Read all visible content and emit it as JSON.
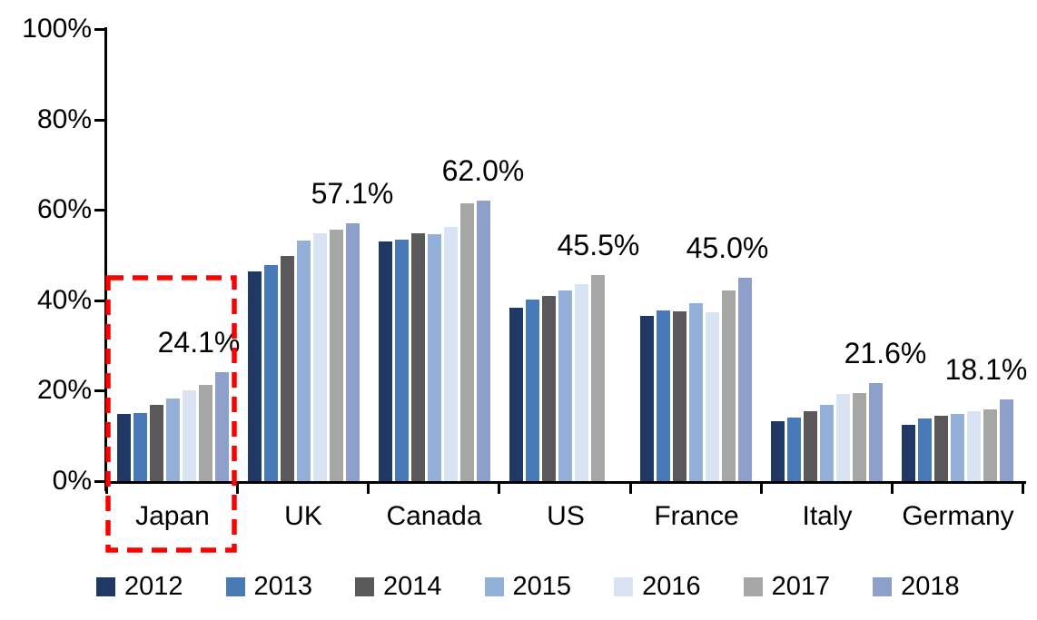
{
  "chart_data": {
    "type": "bar",
    "title": "",
    "xlabel": "",
    "ylabel": "",
    "ylim": [
      0,
      100
    ],
    "grid": false,
    "legend_position": "bottom",
    "y_ticks": [
      "0%",
      "20%",
      "40%",
      "60%",
      "80%",
      "100%"
    ],
    "categories": [
      "Japan",
      "UK",
      "Canada",
      "US",
      "France",
      "Italy",
      "Germany"
    ],
    "series": [
      {
        "name": "2012",
        "color": "#1F3864",
        "values": [
          14.8,
          46.4,
          53.0,
          38.3,
          36.5,
          13.2,
          12.4
        ]
      },
      {
        "name": "2013",
        "color": "#4A79B8",
        "values": [
          15.0,
          47.8,
          53.5,
          40.2,
          37.8,
          14.1,
          13.9
        ]
      },
      {
        "name": "2014",
        "color": "#595959",
        "values": [
          16.8,
          49.8,
          54.9,
          41.0,
          37.6,
          15.5,
          14.5
        ]
      },
      {
        "name": "2015",
        "color": "#92AFD8",
        "values": [
          18.2,
          53.2,
          54.6,
          42.1,
          39.4,
          16.9,
          14.9
        ]
      },
      {
        "name": "2016",
        "color": "#DAE3F3",
        "values": [
          20.0,
          54.8,
          56.2,
          43.6,
          37.3,
          19.2,
          15.5
        ]
      },
      {
        "name": "2017",
        "color": "#A6A6A6",
        "values": [
          21.2,
          55.6,
          61.5,
          45.5,
          42.2,
          19.4,
          15.9
        ]
      },
      {
        "name": "2018",
        "color": "#8E9FC9",
        "values": [
          24.1,
          57.1,
          62.0,
          null,
          45.0,
          21.6,
          18.1
        ]
      }
    ],
    "data_labels": [
      "24.1%",
      "57.1%",
      "62.0%",
      "45.5%",
      "45.0%",
      "21.6%",
      "18.1%"
    ],
    "highlight": {
      "category": "Japan",
      "color": "#FF0000",
      "style": "dashed-rectangle"
    }
  }
}
